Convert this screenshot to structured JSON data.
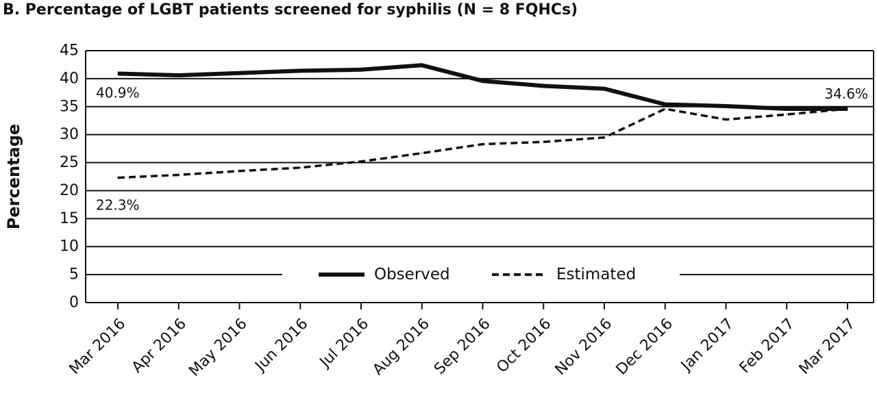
{
  "chart_data": {
    "type": "line",
    "title": "B. Percentage of LGBT patients screened for syphilis (N = 8 FQHCs)",
    "xlabel": "",
    "ylabel": "Percentage",
    "categories": [
      "Mar 2016",
      "Apr 2016",
      "May 2016",
      "Jun 2016",
      "Jul 2016",
      "Aug 2016",
      "Sep 2016",
      "Oct 2016",
      "Nov 2016",
      "Dec 2016",
      "Jan 2017",
      "Feb 2017",
      "Mar 2017"
    ],
    "ylim": [
      0,
      45
    ],
    "yticks": [
      0,
      5,
      10,
      15,
      20,
      25,
      30,
      35,
      40,
      45
    ],
    "grid": "horizontal",
    "series": [
      {
        "name": "Observed",
        "style": "solid",
        "values": [
          40.9,
          40.6,
          41.0,
          41.4,
          41.6,
          42.4,
          39.6,
          38.7,
          38.2,
          35.4,
          35.1,
          34.6,
          34.6
        ]
      },
      {
        "name": "Estimated",
        "style": "dashed",
        "values": [
          22.3,
          22.8,
          23.5,
          24.1,
          25.2,
          26.7,
          28.3,
          28.7,
          29.5,
          34.6,
          32.7,
          33.6,
          34.6
        ]
      }
    ],
    "annotations": [
      {
        "text": "40.9%",
        "series": 0,
        "index": 0
      },
      {
        "text": "22.3%",
        "series": 1,
        "index": 0
      },
      {
        "text": "34.6%",
        "series": 0,
        "index": 12
      }
    ],
    "legend_placement": "bottom-center",
    "colors": {
      "line": "#111111",
      "grid": "#111111",
      "background": "#ffffff"
    }
  }
}
